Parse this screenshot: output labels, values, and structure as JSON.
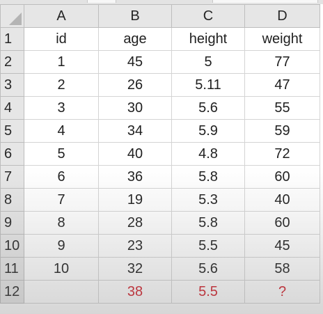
{
  "columns": [
    "A",
    "B",
    "C",
    "D"
  ],
  "rows": [
    {
      "num": "1",
      "cells": [
        "id",
        "age",
        "height",
        "weight"
      ]
    },
    {
      "num": "2",
      "cells": [
        "1",
        "45",
        "5",
        "77"
      ]
    },
    {
      "num": "3",
      "cells": [
        "2",
        "26",
        "5.11",
        "47"
      ]
    },
    {
      "num": "4",
      "cells": [
        "3",
        "30",
        "5.6",
        "55"
      ]
    },
    {
      "num": "5",
      "cells": [
        "4",
        "34",
        "5.9",
        "59"
      ]
    },
    {
      "num": "6",
      "cells": [
        "5",
        "40",
        "4.8",
        "72"
      ]
    },
    {
      "num": "7",
      "cells": [
        "6",
        "36",
        "5.8",
        "60"
      ]
    },
    {
      "num": "8",
      "cells": [
        "7",
        "19",
        "5.3",
        "40"
      ]
    },
    {
      "num": "9",
      "cells": [
        "8",
        "28",
        "5.8",
        "60"
      ]
    },
    {
      "num": "10",
      "cells": [
        "9",
        "23",
        "5.5",
        "45"
      ]
    },
    {
      "num": "11",
      "cells": [
        "10",
        "32",
        "5.6",
        "58"
      ]
    },
    {
      "num": "12",
      "cells": [
        "",
        "38",
        "5.5",
        "?"
      ]
    }
  ],
  "colors": {
    "highlight_text": "#d21f2a",
    "header_bg": "#e6e6e6",
    "gridline": "#d4d4d4"
  }
}
